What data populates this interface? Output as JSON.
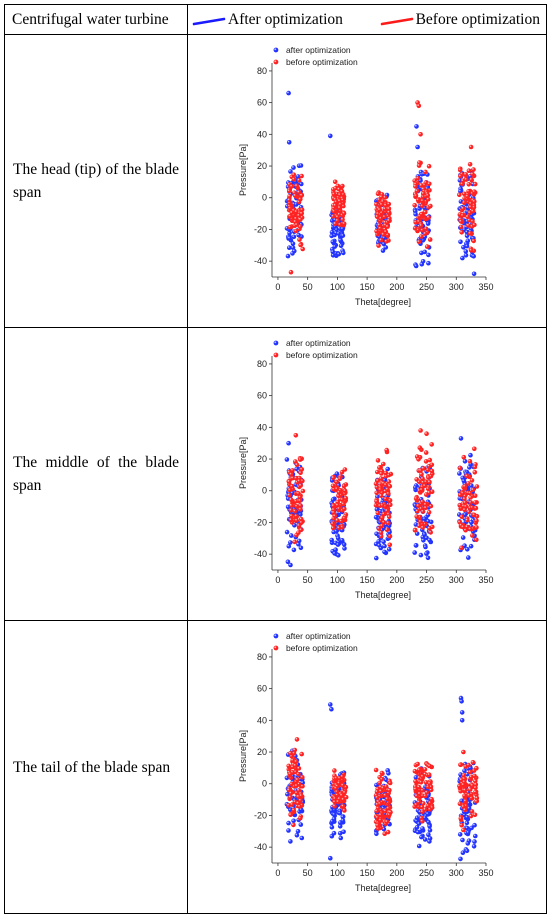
{
  "header": {
    "title": "Centrifugal water turbine",
    "legend_after": "After optimization",
    "legend_before": "Before optimization",
    "color_after": "#1a1aff",
    "color_before": "#ff1a1a"
  },
  "rows": [
    {
      "label": "The head (tip) of the blade span"
    },
    {
      "label": "The middle of the blade span"
    },
    {
      "label": "The tail of the blade span"
    }
  ],
  "chart_data": [
    {
      "type": "scatter",
      "title": "",
      "xlabel": "Theta[degree]",
      "ylabel": "Pressure[Pa]",
      "xlim": [
        -10,
        350
      ],
      "ylim": [
        -50,
        85
      ],
      "xticks": [
        0,
        50,
        100,
        150,
        200,
        250,
        300,
        350
      ],
      "yticks": [
        -40,
        -20,
        0,
        20,
        40,
        60,
        80
      ],
      "legend_position": "top-left",
      "series": [
        {
          "name": "after optimization",
          "color": "#2233ff",
          "clusters": [
            {
              "x": [
                15,
                40
              ],
              "y": [
                -40,
                25
              ]
            },
            {
              "x": [
                90,
                110
              ],
              "y": [
                -40,
                0
              ]
            },
            {
              "x": [
                165,
                185
              ],
              "y": [
                -38,
                5
              ]
            },
            {
              "x": [
                230,
                255
              ],
              "y": [
                -45,
                20
              ]
            },
            {
              "x": [
                305,
                330
              ],
              "y": [
                -45,
                20
              ]
            }
          ],
          "outliers": [
            [
              18,
              66
            ],
            [
              19,
              35
            ],
            [
              88,
              39
            ],
            [
              233,
              45
            ],
            [
              235,
              32
            ],
            [
              330,
              -48
            ]
          ]
        },
        {
          "name": "before optimization",
          "color": "#ff2222",
          "clusters": [
            {
              "x": [
                18,
                42
              ],
              "y": [
                -35,
                18
              ]
            },
            {
              "x": [
                92,
                112
              ],
              "y": [
                -20,
                13
              ]
            },
            {
              "x": [
                165,
                188
              ],
              "y": [
                -32,
                10
              ]
            },
            {
              "x": [
                230,
                258
              ],
              "y": [
                -35,
                25
              ]
            },
            {
              "x": [
                305,
                332
              ],
              "y": [
                -38,
                30
              ]
            }
          ],
          "outliers": [
            [
              235,
              60
            ],
            [
              237,
              58
            ],
            [
              240,
              40
            ],
            [
              22,
              -47
            ],
            [
              325,
              32
            ]
          ]
        }
      ]
    },
    {
      "type": "scatter",
      "title": "",
      "xlabel": "Theta[degree]",
      "ylabel": "Pressure[Pa]",
      "xlim": [
        -10,
        350
      ],
      "ylim": [
        -50,
        85
      ],
      "xticks": [
        0,
        50,
        100,
        150,
        200,
        250,
        300,
        350
      ],
      "yticks": [
        -40,
        -20,
        0,
        20,
        40,
        60,
        80
      ],
      "legend_position": "top-left",
      "series": [
        {
          "name": "after optimization",
          "color": "#2233ff",
          "clusters": [
            {
              "x": [
                15,
                40
              ],
              "y": [
                -48,
                25
              ]
            },
            {
              "x": [
                90,
                112
              ],
              "y": [
                -48,
                15
              ]
            },
            {
              "x": [
                165,
                188
              ],
              "y": [
                -48,
                20
              ]
            },
            {
              "x": [
                230,
                258
              ],
              "y": [
                -45,
                20
              ]
            },
            {
              "x": [
                305,
                332
              ],
              "y": [
                -48,
                30
              ]
            }
          ],
          "outliers": [
            [
              18,
              30
            ],
            [
              308,
              33
            ]
          ]
        },
        {
          "name": "before optimization",
          "color": "#ff2222",
          "clusters": [
            {
              "x": [
                18,
                42
              ],
              "y": [
                -40,
                30
              ]
            },
            {
              "x": [
                92,
                115
              ],
              "y": [
                -30,
                17
              ]
            },
            {
              "x": [
                165,
                190
              ],
              "y": [
                -35,
                28
              ]
            },
            {
              "x": [
                230,
                260
              ],
              "y": [
                -35,
                33
              ]
            },
            {
              "x": [
                305,
                335
              ],
              "y": [
                -40,
                30
              ]
            }
          ],
          "outliers": [
            [
              30,
              35
            ],
            [
              240,
              38
            ],
            [
              250,
              36
            ]
          ]
        }
      ]
    },
    {
      "type": "scatter",
      "title": "",
      "xlabel": "Theta[degree]",
      "ylabel": "Pressure[Pa]",
      "xlim": [
        -10,
        350
      ],
      "ylim": [
        -50,
        85
      ],
      "xticks": [
        0,
        50,
        100,
        150,
        200,
        250,
        300,
        350
      ],
      "yticks": [
        -40,
        -20,
        0,
        20,
        40,
        60,
        80
      ],
      "legend_position": "top-left",
      "series": [
        {
          "name": "after optimization",
          "color": "#2233ff",
          "clusters": [
            {
              "x": [
                15,
                42
              ],
              "y": [
                -42,
                25
              ]
            },
            {
              "x": [
                90,
                112
              ],
              "y": [
                -35,
                10
              ]
            },
            {
              "x": [
                165,
                188
              ],
              "y": [
                -38,
                10
              ]
            },
            {
              "x": [
                230,
                258
              ],
              "y": [
                -45,
                15
              ]
            },
            {
              "x": [
                305,
                332
              ],
              "y": [
                -50,
                20
              ]
            }
          ],
          "outliers": [
            [
              88,
              50
            ],
            [
              90,
              47
            ],
            [
              88,
              -47
            ],
            [
              308,
              54
            ],
            [
              309,
              52
            ],
            [
              310,
              45
            ],
            [
              310,
              40
            ]
          ]
        },
        {
          "name": "before optimization",
          "color": "#ff2222",
          "clusters": [
            {
              "x": [
                18,
                42
              ],
              "y": [
                -30,
                25
              ]
            },
            {
              "x": [
                92,
                115
              ],
              "y": [
                -20,
                12
              ]
            },
            {
              "x": [
                165,
                190
              ],
              "y": [
                -35,
                12
              ]
            },
            {
              "x": [
                230,
                260
              ],
              "y": [
                -25,
                17
              ]
            },
            {
              "x": [
                305,
                335
              ],
              "y": [
                -30,
                18
              ]
            }
          ],
          "outliers": [
            [
              32,
              28
            ],
            [
              312,
              20
            ]
          ]
        }
      ]
    }
  ]
}
